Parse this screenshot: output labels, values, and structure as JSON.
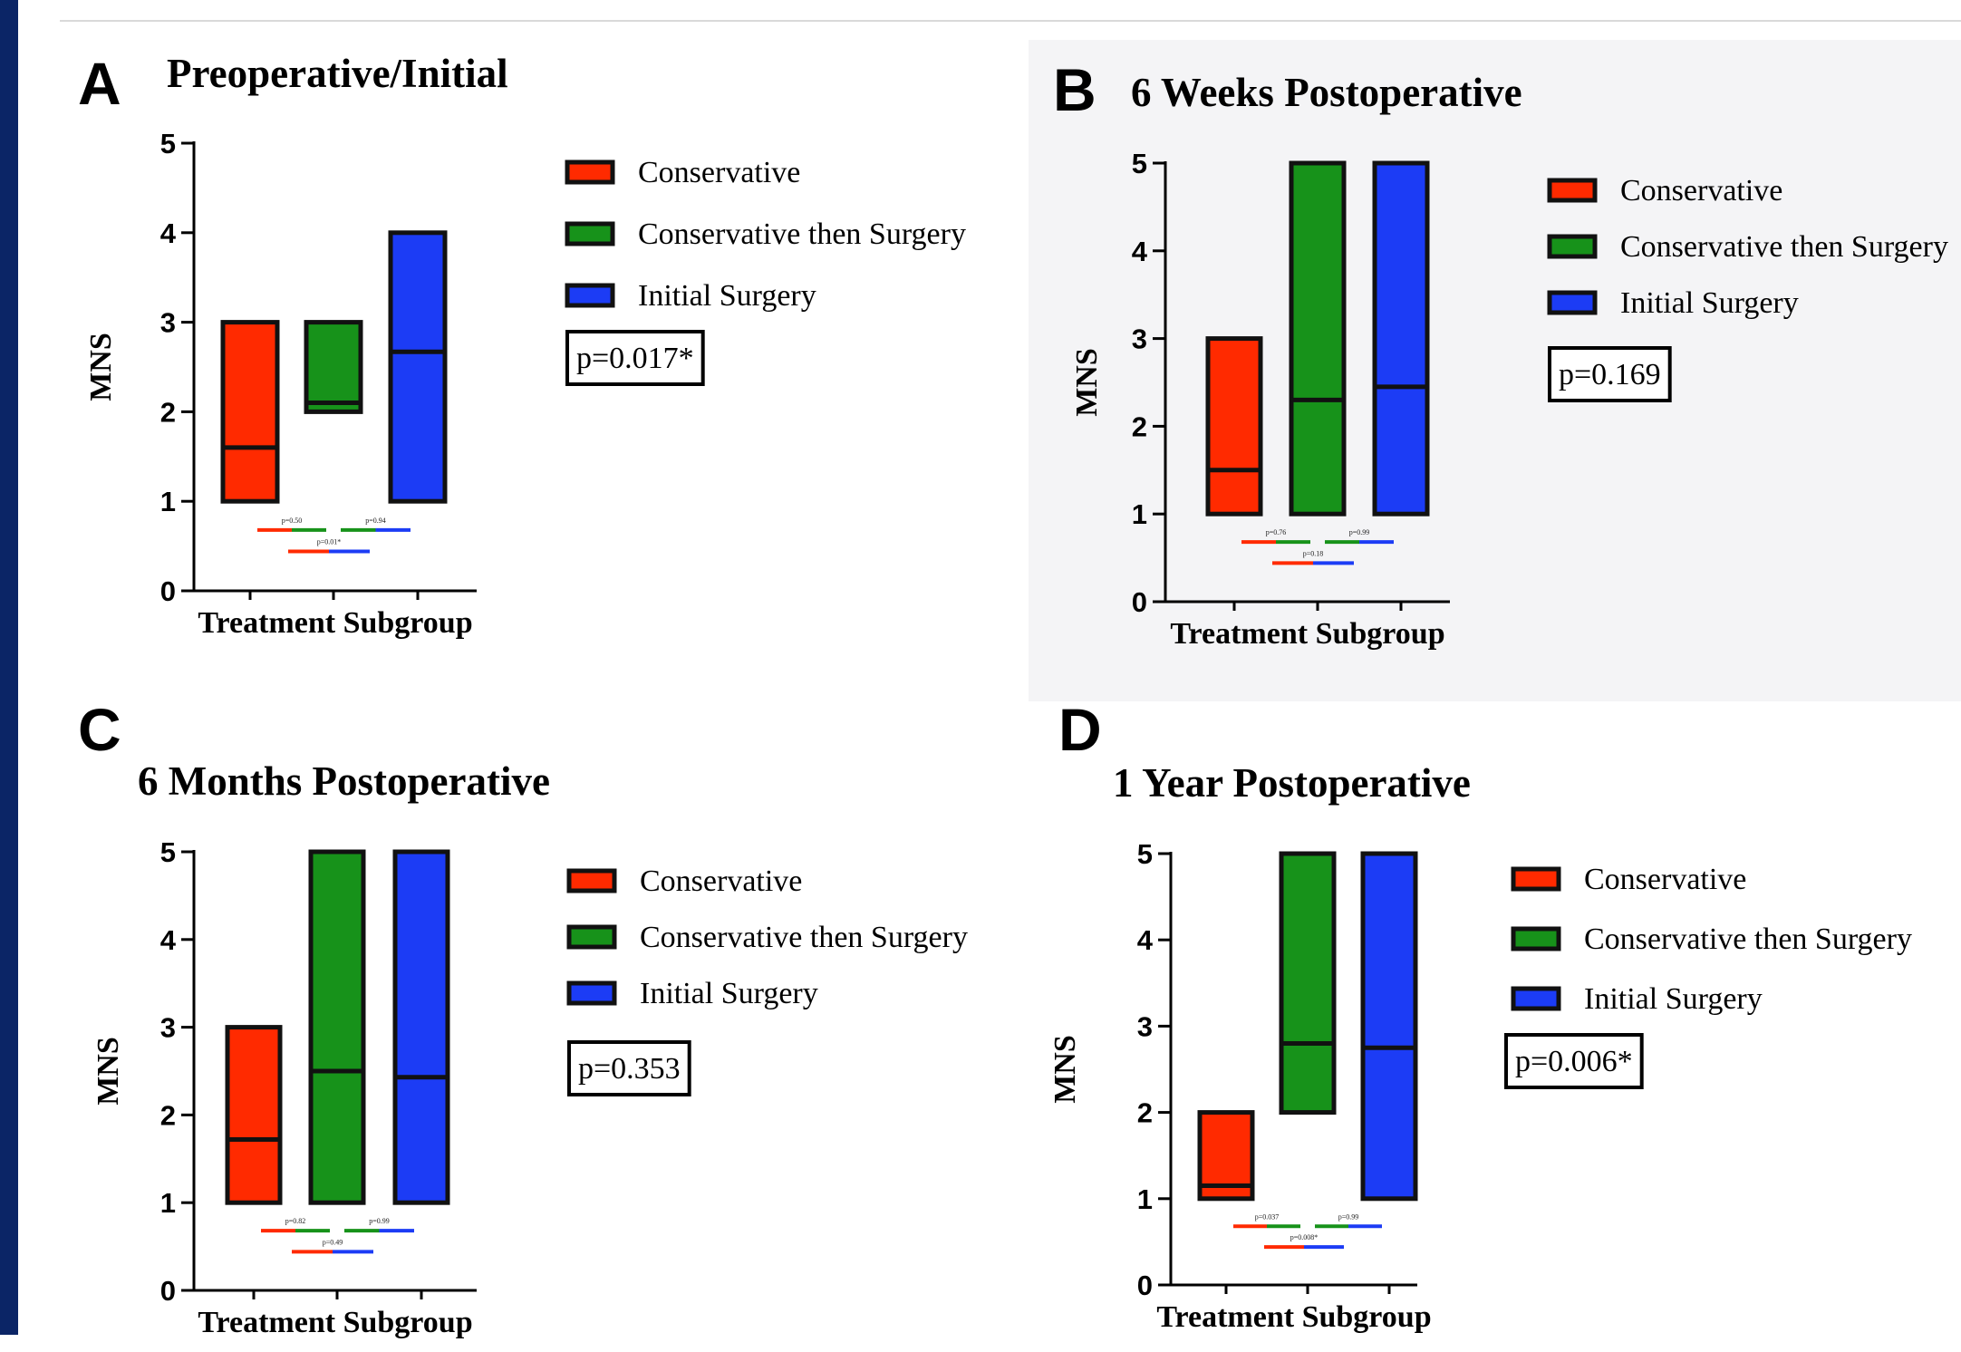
{
  "colors": {
    "conservative": "#ff2a00",
    "conservative_then_surgery": "#17921a",
    "initial_surgery": "#1c3cf5",
    "frame": "#0b2566",
    "panel_b_background": "#f4f4f6"
  },
  "chart_data": [
    {
      "type": "box",
      "panel_letter": "A",
      "title": "Preoperative/Initial",
      "xlabel": "Treatment Subgroup",
      "ylabel": "MNS",
      "ylim": [
        0,
        5
      ],
      "yticks": [
        "0",
        "1",
        "2",
        "3",
        "4",
        "5"
      ],
      "legend": [
        "Conservative",
        "Conservative then Surgery",
        "Initial Surgery"
      ],
      "legend_position": "right",
      "p_value": "p=0.017*",
      "series": [
        {
          "name": "Conservative",
          "min": 1,
          "max": 3,
          "median": 1.6
        },
        {
          "name": "Conservative then Surgery",
          "min": 2,
          "max": 3,
          "median": 2.1
        },
        {
          "name": "Initial Surgery",
          "min": 1,
          "max": 4,
          "median": 2.67
        }
      ],
      "pairwise": [
        {
          "pair": [
            "Conservative",
            "Conservative then Surgery"
          ],
          "label": "p=0.50"
        },
        {
          "pair": [
            "Conservative then Surgery",
            "Initial Surgery"
          ],
          "label": "p=0.94"
        },
        {
          "pair": [
            "Conservative",
            "Initial Surgery"
          ],
          "label": "p=0.01*"
        }
      ]
    },
    {
      "type": "box",
      "panel_letter": "B",
      "title": "6 Weeks Postoperative",
      "xlabel": "Treatment Subgroup",
      "ylabel": "MNS",
      "ylim": [
        0,
        5
      ],
      "yticks": [
        "0",
        "1",
        "2",
        "3",
        "4",
        "5"
      ],
      "legend": [
        "Conservative",
        "Conservative then Surgery",
        "Initial Surgery"
      ],
      "legend_position": "right",
      "p_value": "p=0.169",
      "series": [
        {
          "name": "Conservative",
          "min": 1,
          "max": 3,
          "median": 1.5
        },
        {
          "name": "Conservative then Surgery",
          "min": 1,
          "max": 5,
          "median": 2.3
        },
        {
          "name": "Initial Surgery",
          "min": 1,
          "max": 5,
          "median": 2.45
        }
      ],
      "pairwise": [
        {
          "pair": [
            "Conservative",
            "Conservative then Surgery"
          ],
          "label": "p=0.76"
        },
        {
          "pair": [
            "Conservative then Surgery",
            "Initial Surgery"
          ],
          "label": "p=0.99"
        },
        {
          "pair": [
            "Conservative",
            "Initial Surgery"
          ],
          "label": "p=0.18"
        }
      ]
    },
    {
      "type": "box",
      "panel_letter": "C",
      "title": "6 Months Postoperative",
      "xlabel": "Treatment Subgroup",
      "ylabel": "MNS",
      "ylim": [
        0,
        5
      ],
      "yticks": [
        "0",
        "1",
        "2",
        "3",
        "4",
        "5"
      ],
      "legend": [
        "Conservative",
        "Conservative then Surgery",
        "Initial Surgery"
      ],
      "legend_position": "right",
      "p_value": "p=0.353",
      "series": [
        {
          "name": "Conservative",
          "min": 1,
          "max": 3,
          "median": 1.72
        },
        {
          "name": "Conservative then Surgery",
          "min": 1,
          "max": 5,
          "median": 2.5
        },
        {
          "name": "Initial Surgery",
          "min": 1,
          "max": 5,
          "median": 2.43
        }
      ],
      "pairwise": [
        {
          "pair": [
            "Conservative",
            "Conservative then Surgery"
          ],
          "label": "p=0.82"
        },
        {
          "pair": [
            "Conservative then Surgery",
            "Initial Surgery"
          ],
          "label": "p=0.99"
        },
        {
          "pair": [
            "Conservative",
            "Initial Surgery"
          ],
          "label": "p=0.49"
        }
      ]
    },
    {
      "type": "box",
      "panel_letter": "D",
      "title": "1 Year Postoperative",
      "xlabel": "Treatment Subgroup",
      "ylabel": "MNS",
      "ylim": [
        0,
        5
      ],
      "yticks": [
        "0",
        "1",
        "2",
        "3",
        "4",
        "5"
      ],
      "legend": [
        "Conservative",
        "Conservative then Surgery",
        "Initial Surgery"
      ],
      "legend_position": "right",
      "p_value": "p=0.006*",
      "series": [
        {
          "name": "Conservative",
          "min": 1,
          "max": 2,
          "median": 1.15
        },
        {
          "name": "Conservative then Surgery",
          "min": 2,
          "max": 5,
          "median": 2.8
        },
        {
          "name": "Initial Surgery",
          "min": 1,
          "max": 5,
          "median": 2.75
        }
      ],
      "pairwise": [
        {
          "pair": [
            "Conservative",
            "Conservative then Surgery"
          ],
          "label": "p=0.037"
        },
        {
          "pair": [
            "Conservative then Surgery",
            "Initial Surgery"
          ],
          "label": "p=0.99"
        },
        {
          "pair": [
            "Conservative",
            "Initial Surgery"
          ],
          "label": "p=0.008*"
        }
      ]
    }
  ]
}
